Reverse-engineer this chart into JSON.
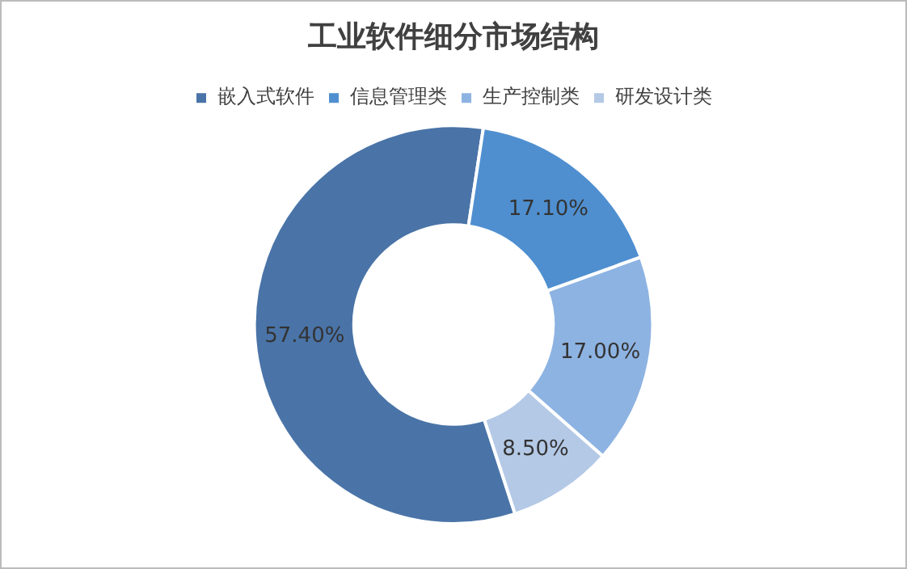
{
  "chart_data": {
    "type": "donut",
    "title": "工业软件细分市场结构",
    "categories": [
      "嵌入式软件",
      "信息管理类",
      "生产控制类",
      "研发设计类"
    ],
    "values": [
      57.4,
      17.1,
      17.0,
      8.5
    ],
    "colors": [
      "#4a74a8",
      "#4f8fd0",
      "#8db3e2",
      "#b4c9e6"
    ],
    "value_labels": [
      "57.40%",
      "17.10%",
      "17.00%",
      "8.50%"
    ],
    "legend": "top"
  }
}
